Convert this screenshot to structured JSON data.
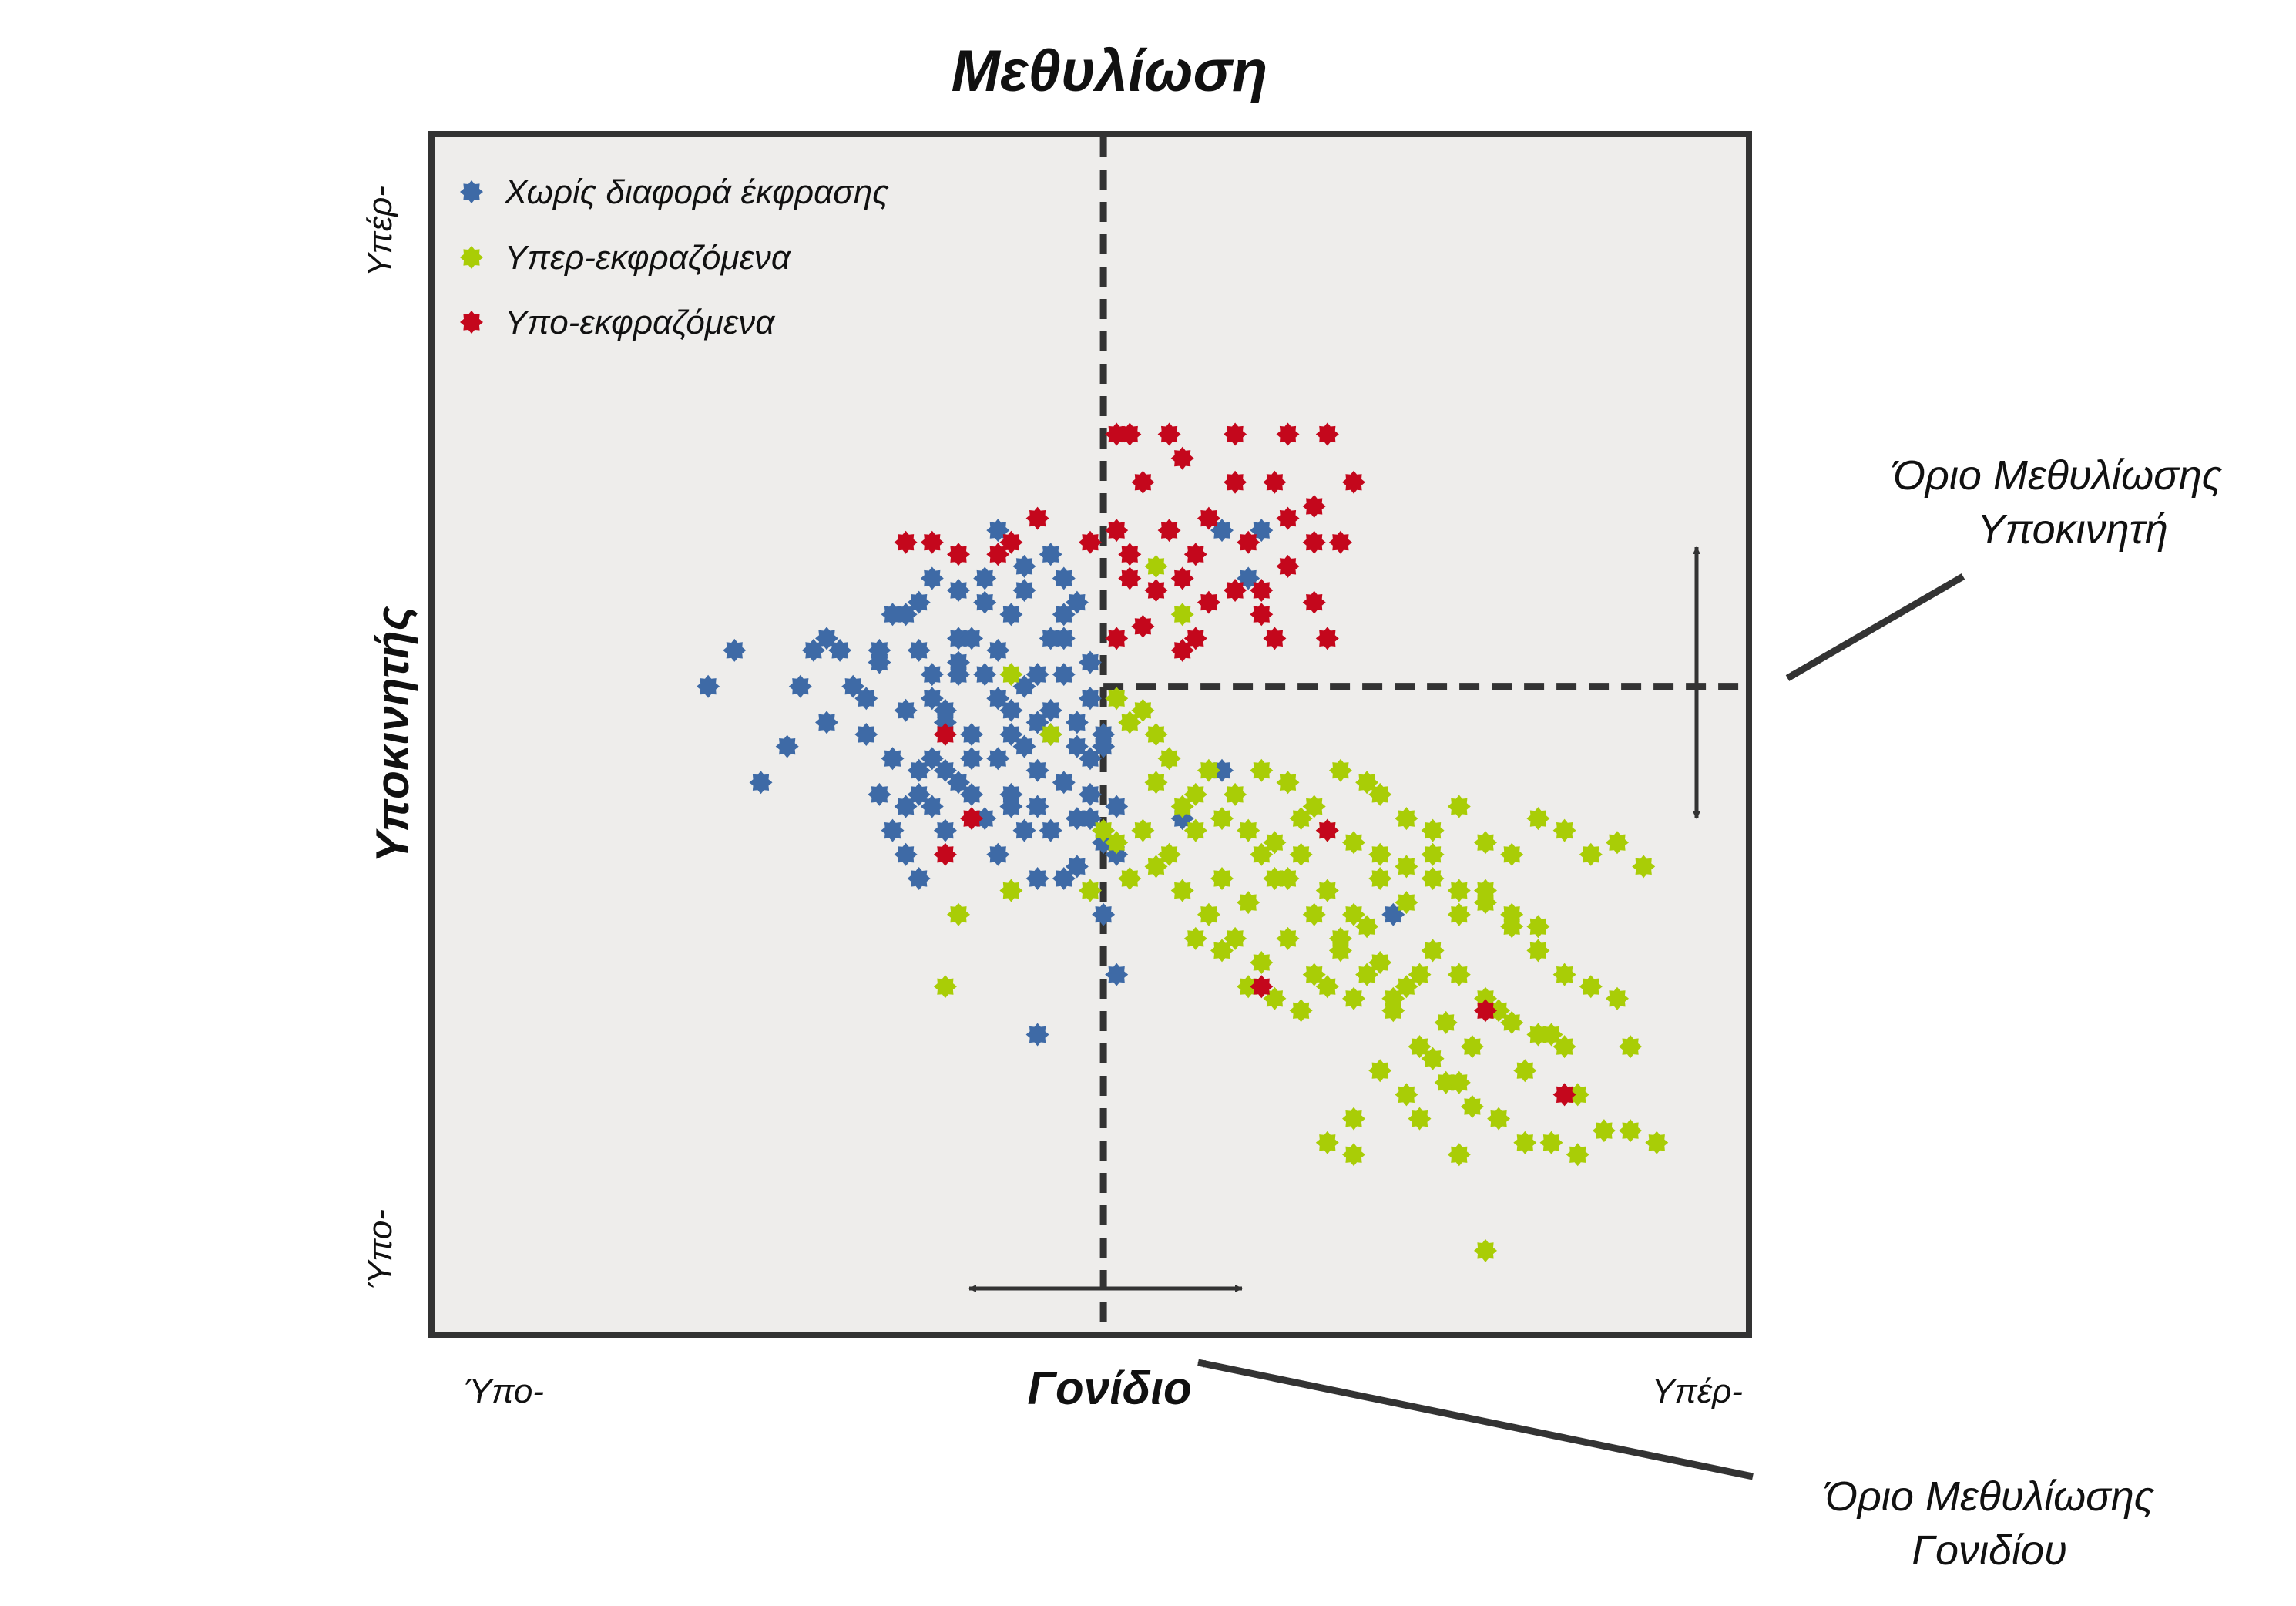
{
  "chart_data": {
    "type": "scatter",
    "title": "Μεθυλίωση",
    "xlabel": "Γονίδιο",
    "ylabel": "Υποκινητής",
    "x_tick_labels": [
      "Ύπο-",
      "Υπέρ-"
    ],
    "y_tick_labels": [
      "Ύπο-",
      "Υπέρ-"
    ],
    "xlim": [
      0,
      100
    ],
    "ylim": [
      0,
      100
    ],
    "grid": false,
    "legend_position": "top-left",
    "background_color": "#eeedeb",
    "threshold_x": 51,
    "threshold_y": 54,
    "annotations": {
      "promoter_threshold": [
        "Όριο Μεθυλίωσης",
        "Υποκινητή"
      ],
      "gene_threshold": [
        "Όριο Μεθυλίωσης",
        "Γονιδίου"
      ]
    },
    "series": [
      {
        "name": "Χωρίς διαφορά έκφρασης",
        "color": "#3e6aa6",
        "points": [
          [
            21,
            54
          ],
          [
            23,
            57
          ],
          [
            27,
            49
          ],
          [
            25,
            46
          ],
          [
            28,
            54
          ],
          [
            29,
            57
          ],
          [
            30,
            58
          ],
          [
            32,
            54
          ],
          [
            33,
            50
          ],
          [
            34,
            45
          ],
          [
            34,
            57
          ],
          [
            35,
            60
          ],
          [
            37,
            61
          ],
          [
            37,
            57
          ],
          [
            36,
            52
          ],
          [
            37,
            47
          ],
          [
            38,
            53
          ],
          [
            38,
            55
          ],
          [
            39,
            51
          ],
          [
            40,
            56
          ],
          [
            40,
            58
          ],
          [
            41,
            50
          ],
          [
            41,
            48
          ],
          [
            42,
            55
          ],
          [
            43,
            53
          ],
          [
            43,
            57
          ],
          [
            44,
            50
          ],
          [
            44,
            52
          ],
          [
            44,
            45
          ],
          [
            45,
            54
          ],
          [
            45,
            49
          ],
          [
            46,
            51
          ],
          [
            46,
            55
          ],
          [
            46,
            47
          ],
          [
            47,
            50
          ],
          [
            47,
            52
          ],
          [
            48,
            55
          ],
          [
            48,
            58
          ],
          [
            48,
            60
          ],
          [
            49,
            49
          ],
          [
            49,
            51
          ],
          [
            50,
            48
          ],
          [
            50,
            53
          ],
          [
            50,
            56
          ],
          [
            51,
            50
          ],
          [
            51,
            49
          ],
          [
            52,
            44
          ],
          [
            51,
            41
          ],
          [
            35,
            42
          ],
          [
            36,
            40
          ],
          [
            37,
            38
          ],
          [
            38,
            44
          ],
          [
            39,
            42
          ],
          [
            40,
            46
          ],
          [
            42,
            43
          ],
          [
            43,
            40
          ],
          [
            44,
            44
          ],
          [
            45,
            42
          ],
          [
            46,
            38
          ],
          [
            47,
            42
          ],
          [
            48,
            38
          ],
          [
            49,
            39
          ],
          [
            49,
            61
          ],
          [
            48,
            63
          ],
          [
            47,
            65
          ],
          [
            45,
            64
          ],
          [
            43,
            67
          ],
          [
            42,
            63
          ],
          [
            41,
            58
          ],
          [
            40,
            55
          ],
          [
            39,
            52
          ],
          [
            38,
            48
          ],
          [
            37,
            45
          ],
          [
            52,
            30
          ],
          [
            46,
            25
          ],
          [
            50,
            43
          ],
          [
            51,
            35
          ],
          [
            52,
            40
          ],
          [
            47,
            58
          ],
          [
            45,
            62
          ],
          [
            44,
            60
          ],
          [
            42,
            61
          ],
          [
            40,
            62
          ],
          [
            38,
            63
          ],
          [
            36,
            60
          ],
          [
            34,
            56
          ],
          [
            33,
            53
          ],
          [
            31,
            57
          ],
          [
            30,
            51
          ],
          [
            35,
            48
          ],
          [
            36,
            44
          ],
          [
            39,
            47
          ],
          [
            41,
            45
          ],
          [
            43,
            48
          ],
          [
            46,
            44
          ],
          [
            48,
            46
          ],
          [
            49,
            43
          ],
          [
            50,
            45
          ],
          [
            60,
            67
          ],
          [
            62,
            63
          ],
          [
            63,
            67
          ],
          [
            60,
            47
          ],
          [
            57,
            43
          ],
          [
            73,
            35
          ]
        ]
      },
      {
        "name": "Υπερ-εκφραζόμενα",
        "color": "#a9cd06",
        "points": [
          [
            53,
            51
          ],
          [
            55,
            50
          ],
          [
            56,
            48
          ],
          [
            59,
            47
          ],
          [
            61,
            45
          ],
          [
            63,
            47
          ],
          [
            65,
            46
          ],
          [
            67,
            44
          ],
          [
            69,
            47
          ],
          [
            71,
            46
          ],
          [
            72,
            45
          ],
          [
            74,
            43
          ],
          [
            76,
            42
          ],
          [
            78,
            44
          ],
          [
            80,
            41
          ],
          [
            82,
            40
          ],
          [
            84,
            43
          ],
          [
            86,
            42
          ],
          [
            88,
            40
          ],
          [
            90,
            41
          ],
          [
            92,
            39
          ],
          [
            52,
            41
          ],
          [
            54,
            42
          ],
          [
            56,
            40
          ],
          [
            58,
            42
          ],
          [
            60,
            38
          ],
          [
            62,
            36
          ],
          [
            64,
            38
          ],
          [
            66,
            40
          ],
          [
            68,
            37
          ],
          [
            70,
            35
          ],
          [
            72,
            38
          ],
          [
            74,
            36
          ],
          [
            76,
            40
          ],
          [
            78,
            35
          ],
          [
            80,
            37
          ],
          [
            82,
            34
          ],
          [
            84,
            32
          ],
          [
            86,
            30
          ],
          [
            88,
            29
          ],
          [
            53,
            38
          ],
          [
            55,
            39
          ],
          [
            57,
            37
          ],
          [
            59,
            35
          ],
          [
            61,
            33
          ],
          [
            63,
            31
          ],
          [
            65,
            33
          ],
          [
            67,
            30
          ],
          [
            69,
            32
          ],
          [
            71,
            34
          ],
          [
            73,
            28
          ],
          [
            75,
            30
          ],
          [
            77,
            26
          ],
          [
            79,
            24
          ],
          [
            81,
            27
          ],
          [
            83,
            22
          ],
          [
            85,
            25
          ],
          [
            87,
            20
          ],
          [
            90,
            28
          ],
          [
            91,
            24
          ],
          [
            57,
            44
          ],
          [
            60,
            43
          ],
          [
            62,
            42
          ],
          [
            64,
            41
          ],
          [
            66,
            43
          ],
          [
            68,
            42
          ],
          [
            70,
            41
          ],
          [
            72,
            40
          ],
          [
            74,
            39
          ],
          [
            76,
            38
          ],
          [
            78,
            37
          ],
          [
            80,
            36
          ],
          [
            82,
            35
          ],
          [
            84,
            34
          ],
          [
            58,
            33
          ],
          [
            60,
            32
          ],
          [
            62,
            29
          ],
          [
            64,
            28
          ],
          [
            66,
            27
          ],
          [
            68,
            29
          ],
          [
            70,
            28
          ],
          [
            72,
            31
          ],
          [
            74,
            29
          ],
          [
            76,
            32
          ],
          [
            78,
            30
          ],
          [
            80,
            28
          ],
          [
            82,
            26
          ],
          [
            84,
            25
          ],
          [
            86,
            24
          ],
          [
            52,
            53
          ],
          [
            54,
            52
          ],
          [
            40,
            35
          ],
          [
            39,
            29
          ],
          [
            44,
            37
          ],
          [
            50,
            37
          ],
          [
            51,
            42
          ],
          [
            55,
            46
          ],
          [
            58,
            45
          ],
          [
            63,
            40
          ],
          [
            65,
            38
          ],
          [
            67,
            35
          ],
          [
            69,
            33
          ],
          [
            71,
            30
          ],
          [
            73,
            27
          ],
          [
            75,
            24
          ],
          [
            77,
            21
          ],
          [
            79,
            19
          ],
          [
            81,
            18
          ],
          [
            83,
            16
          ],
          [
            85,
            16
          ],
          [
            87,
            15
          ],
          [
            89,
            17
          ],
          [
            91,
            17
          ],
          [
            93,
            16
          ],
          [
            80,
            7
          ],
          [
            68,
            16
          ],
          [
            70,
            18
          ],
          [
            72,
            22
          ],
          [
            74,
            20
          ],
          [
            76,
            23
          ],
          [
            78,
            21
          ],
          [
            78,
            15
          ],
          [
            75,
            18
          ],
          [
            70,
            15
          ],
          [
            57,
            60
          ],
          [
            55,
            64
          ],
          [
            44,
            55
          ],
          [
            47,
            50
          ]
        ]
      },
      {
        "name": "Υπο-εκφραζόμενα",
        "color": "#c4071c",
        "points": [
          [
            52,
            75
          ],
          [
            53,
            75
          ],
          [
            56,
            75
          ],
          [
            61,
            75
          ],
          [
            65,
            75
          ],
          [
            68,
            75
          ],
          [
            70,
            71
          ],
          [
            67,
            69
          ],
          [
            64,
            71
          ],
          [
            61,
            71
          ],
          [
            57,
            73
          ],
          [
            54,
            71
          ],
          [
            52,
            67
          ],
          [
            56,
            67
          ],
          [
            59,
            68
          ],
          [
            62,
            66
          ],
          [
            65,
            68
          ],
          [
            67,
            66
          ],
          [
            69,
            66
          ],
          [
            53,
            63
          ],
          [
            55,
            62
          ],
          [
            57,
            63
          ],
          [
            59,
            61
          ],
          [
            61,
            62
          ],
          [
            63,
            62
          ],
          [
            65,
            64
          ],
          [
            67,
            61
          ],
          [
            52,
            58
          ],
          [
            54,
            59
          ],
          [
            57,
            57
          ],
          [
            58,
            58
          ],
          [
            64,
            58
          ],
          [
            68,
            58
          ],
          [
            36,
            66
          ],
          [
            38,
            66
          ],
          [
            40,
            65
          ],
          [
            43,
            65
          ],
          [
            44,
            66
          ],
          [
            46,
            68
          ],
          [
            50,
            66
          ],
          [
            53,
            65
          ],
          [
            58,
            65
          ],
          [
            63,
            60
          ],
          [
            39,
            50
          ],
          [
            41,
            43
          ],
          [
            39,
            40
          ],
          [
            63,
            29
          ],
          [
            68,
            42
          ],
          [
            80,
            27
          ],
          [
            86,
            20
          ]
        ]
      }
    ]
  }
}
